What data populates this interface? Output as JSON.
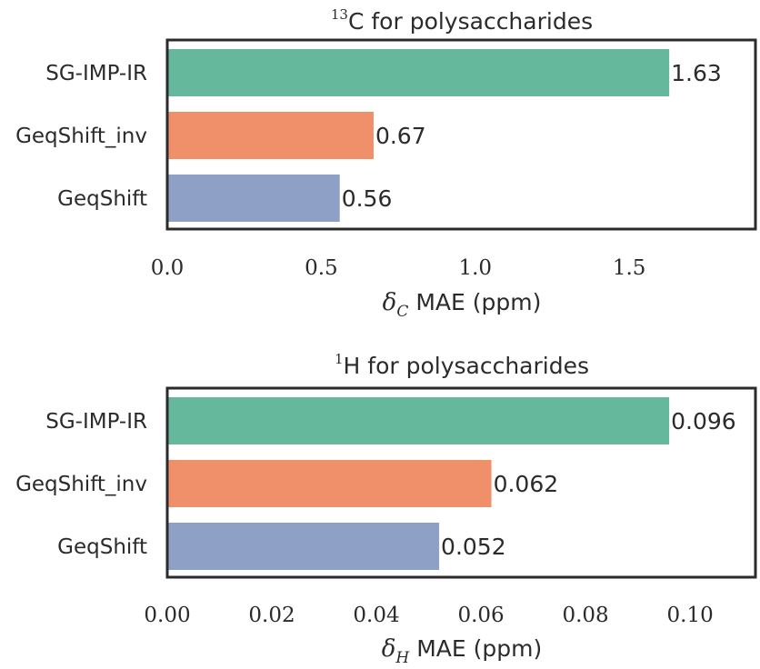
{
  "chart_data": [
    {
      "type": "bar",
      "orientation": "horizontal",
      "title_sup": "13",
      "title_text": "C for polysaccharides",
      "categories": [
        "SG-IMP-IR",
        "GeqShift_inv",
        "GeqShift"
      ],
      "values": [
        1.63,
        0.67,
        0.56
      ],
      "value_labels": [
        "1.63",
        "0.67",
        "0.56"
      ],
      "colors": [
        "#66b89d",
        "#f0906a",
        "#8fa0c6"
      ],
      "xlim": [
        0,
        1.91
      ],
      "xticks": [
        0.0,
        0.5,
        1.0,
        1.5
      ],
      "xtick_labels": [
        "0.0",
        "0.5",
        "1.0",
        "1.5"
      ],
      "xlabel_symbol": "δ",
      "xlabel_subscript": "C",
      "xlabel_text": "MAE (ppm)",
      "grid": false
    },
    {
      "type": "bar",
      "orientation": "horizontal",
      "title_sup": "1",
      "title_text": "H for polysaccharides",
      "categories": [
        "SG-IMP-IR",
        "GeqShift_inv",
        "GeqShift"
      ],
      "values": [
        0.096,
        0.062,
        0.052
      ],
      "value_labels": [
        "0.096",
        "0.062",
        "0.052"
      ],
      "colors": [
        "#66b89d",
        "#f0906a",
        "#8fa0c6"
      ],
      "xlim": [
        0,
        0.1125
      ],
      "xticks": [
        0.0,
        0.02,
        0.04,
        0.06,
        0.08,
        0.1
      ],
      "xtick_labels": [
        "0.00",
        "0.02",
        "0.04",
        "0.06",
        "0.08",
        "0.10"
      ],
      "xlabel_symbol": "δ",
      "xlabel_subscript": "H",
      "xlabel_text": "MAE (ppm)",
      "grid": false
    }
  ]
}
